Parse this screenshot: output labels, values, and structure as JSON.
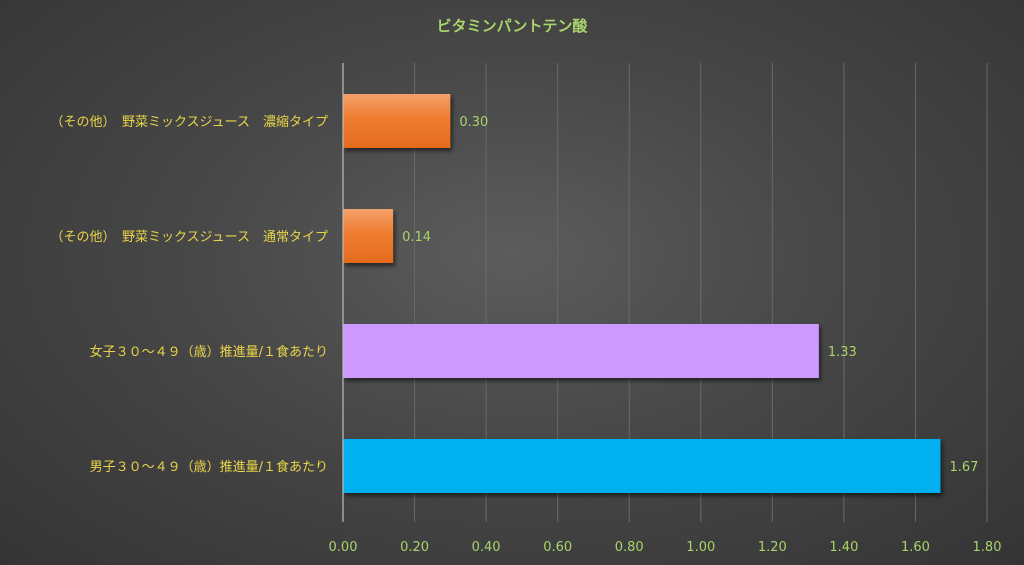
{
  "chart_data": {
    "type": "bar",
    "orientation": "horizontal",
    "title": "ビタミンパントテン酸",
    "categories": [
      "（その他）　野菜ミックスジュース　濃縮タイプ",
      "（その他）　野菜ミックスジュース　通常タイプ",
      "女子３０～４９（歳）推進量/１食あたり",
      "男子３０～４９（歳）推進量/１食あたり"
    ],
    "values": [
      0.3,
      0.14,
      1.33,
      1.67
    ],
    "value_labels": [
      "0.30",
      "0.14",
      "1.33",
      "1.67"
    ],
    "bar_colors": [
      "#ef7b2d",
      "#ef7b2d",
      "#cc99ff",
      "#00b0f0"
    ],
    "xlim": [
      0,
      1.8
    ],
    "xticks": [
      0,
      0.2,
      0.4,
      0.6,
      0.8,
      1.0,
      1.2,
      1.4,
      1.6,
      1.8
    ],
    "xtick_labels": [
      "0.00",
      "0.20",
      "0.40",
      "0.60",
      "0.80",
      "1.00",
      "1.20",
      "1.40",
      "1.60",
      "1.80"
    ],
    "grid": true,
    "legend": "none",
    "colors": {
      "title": "#a9d36b",
      "category_text": "#e8d548",
      "tick_text": "#a9d36b",
      "gridline": "#6a6a6a"
    }
  }
}
